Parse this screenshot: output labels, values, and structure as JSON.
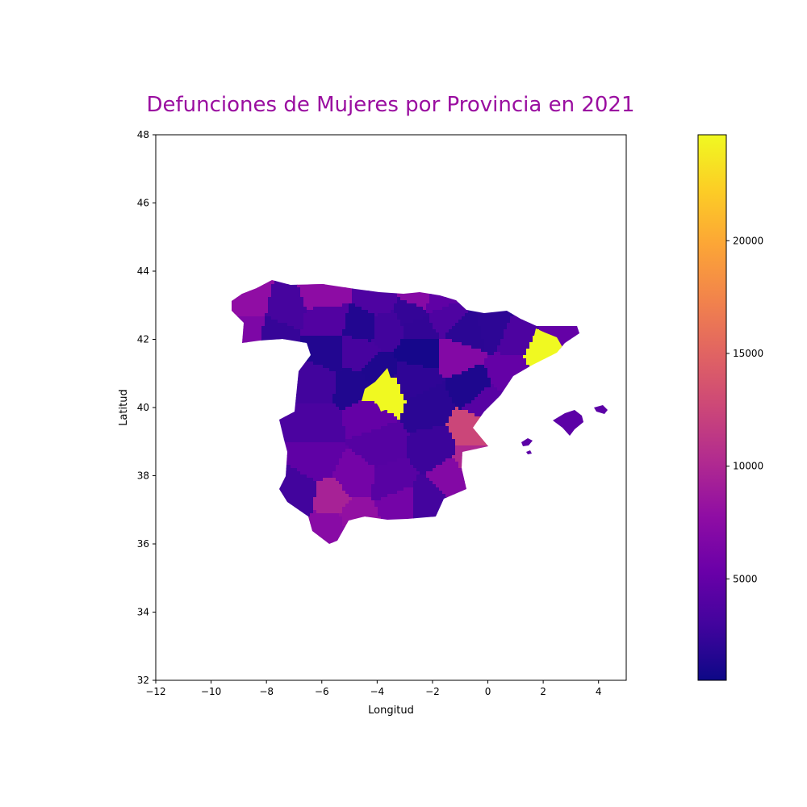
{
  "chart_data": {
    "type": "choropleth-map",
    "title": "Defunciones de Mujeres por Provincia en 2021",
    "xlabel": "Longitud",
    "ylabel": "Latitud",
    "xlim": [
      -12,
      5
    ],
    "ylim": [
      32,
      48
    ],
    "x_ticks": [
      -12,
      -10,
      -8,
      -6,
      -4,
      -2,
      0,
      2,
      4
    ],
    "x_tick_labels": [
      "−12",
      "−10",
      "−8",
      "−6",
      "−4",
      "−2",
      "0",
      "2",
      "4"
    ],
    "y_ticks": [
      32,
      34,
      36,
      38,
      40,
      42,
      44,
      46,
      48
    ],
    "y_tick_labels": [
      "32",
      "34",
      "36",
      "38",
      "40",
      "42",
      "44",
      "46",
      "48"
    ],
    "grid": false,
    "colormap": "plasma",
    "colorbar": {
      "min": 500,
      "max": 24700,
      "ticks": [
        5000,
        10000,
        15000,
        20000
      ],
      "tick_labels": [
        "5000",
        "10000",
        "15000",
        "20000"
      ]
    },
    "regions": [
      {
        "lon": -8.5,
        "lat": 43.1,
        "value": 7800
      },
      {
        "lon": -7.4,
        "lat": 42.9,
        "value": 3200
      },
      {
        "lon": -7.8,
        "lat": 42.2,
        "value": 2400
      },
      {
        "lon": -8.5,
        "lat": 42.3,
        "value": 6600
      },
      {
        "lon": -5.9,
        "lat": 43.3,
        "value": 7600
      },
      {
        "lon": -4.0,
        "lat": 43.2,
        "value": 3700
      },
      {
        "lon": -2.5,
        "lat": 43.2,
        "value": 7200
      },
      {
        "lon": -1.8,
        "lat": 43.1,
        "value": 4700
      },
      {
        "lon": -2.7,
        "lat": 42.8,
        "value": 2300
      },
      {
        "lon": -1.6,
        "lat": 42.7,
        "value": 3700
      },
      {
        "lon": -5.8,
        "lat": 42.6,
        "value": 3900
      },
      {
        "lon": -4.5,
        "lat": 42.4,
        "value": 1500
      },
      {
        "lon": -3.7,
        "lat": 42.3,
        "value": 3000
      },
      {
        "lon": -2.5,
        "lat": 42.3,
        "value": 2200
      },
      {
        "lon": -5.8,
        "lat": 41.6,
        "value": 1500
      },
      {
        "lon": -4.7,
        "lat": 41.6,
        "value": 3300
      },
      {
        "lon": -2.5,
        "lat": 41.7,
        "value": 900
      },
      {
        "lon": -6.2,
        "lat": 40.8,
        "value": 3000
      },
      {
        "lon": -4.8,
        "lat": 40.6,
        "value": 1400
      },
      {
        "lon": -4.0,
        "lat": 41.0,
        "value": 1300
      },
      {
        "lon": -2.7,
        "lat": 40.8,
        "value": 2100
      },
      {
        "lon": -3.7,
        "lat": 40.45,
        "value": 24700
      },
      {
        "lon": -6.2,
        "lat": 39.5,
        "value": 3500
      },
      {
        "lon": -4.3,
        "lat": 39.8,
        "value": 5000
      },
      {
        "lon": -2.2,
        "lat": 40.0,
        "value": 1900
      },
      {
        "lon": -0.8,
        "lat": 42.1,
        "value": 1900
      },
      {
        "lon": 0.3,
        "lat": 42.3,
        "value": 2000
      },
      {
        "lon": -1.0,
        "lat": 41.6,
        "value": 7000
      },
      {
        "lon": -0.5,
        "lat": 40.6,
        "value": 1300
      },
      {
        "lon": 0.9,
        "lat": 42.1,
        "value": 3600
      },
      {
        "lon": 2.1,
        "lat": 41.6,
        "value": 24700
      },
      {
        "lon": 2.7,
        "lat": 42.1,
        "value": 5000
      },
      {
        "lon": 0.7,
        "lat": 41.0,
        "value": 5000
      },
      {
        "lon": -0.1,
        "lat": 40.2,
        "value": 4200
      },
      {
        "lon": -0.6,
        "lat": 39.3,
        "value": 12500
      },
      {
        "lon": -0.6,
        "lat": 38.4,
        "value": 10000
      },
      {
        "lon": -3.9,
        "lat": 38.9,
        "value": 4100
      },
      {
        "lon": -1.9,
        "lat": 38.8,
        "value": 2700
      },
      {
        "lon": -1.3,
        "lat": 38.0,
        "value": 7000
      },
      {
        "lon": -6.2,
        "lat": 38.5,
        "value": 4700
      },
      {
        "lon": -4.8,
        "lat": 37.9,
        "value": 6000
      },
      {
        "lon": -3.5,
        "lat": 37.8,
        "value": 4300
      },
      {
        "lon": -6.9,
        "lat": 37.5,
        "value": 3000
      },
      {
        "lon": -5.6,
        "lat": 37.3,
        "value": 9500
      },
      {
        "lon": -4.8,
        "lat": 36.8,
        "value": 8000
      },
      {
        "lon": -3.2,
        "lat": 37.2,
        "value": 6000
      },
      {
        "lon": -2.3,
        "lat": 37.2,
        "value": 3100
      },
      {
        "lon": -5.7,
        "lat": 36.5,
        "value": 7300
      },
      {
        "lon": 2.9,
        "lat": 39.6,
        "value": 5000
      },
      {
        "lon": 1.4,
        "lat": 39.0,
        "value": 5000
      }
    ]
  }
}
